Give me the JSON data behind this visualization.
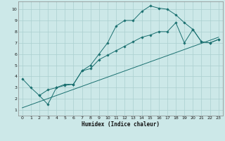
{
  "xlabel": "Humidex (Indice chaleur)",
  "ylabel": "",
  "background_color": "#cce8e8",
  "grid_color": "#aacfcf",
  "line_color": "#1a7070",
  "marker_color": "#1a7070",
  "xlim": [
    -0.5,
    23.5
  ],
  "ylim": [
    0.5,
    10.7
  ],
  "xticks": [
    0,
    1,
    2,
    3,
    4,
    5,
    6,
    7,
    8,
    9,
    10,
    11,
    12,
    13,
    14,
    15,
    16,
    17,
    18,
    19,
    20,
    21,
    22,
    23
  ],
  "yticks": [
    1,
    2,
    3,
    4,
    5,
    6,
    7,
    8,
    9,
    10
  ],
  "line1_x": [
    0,
    1,
    2,
    3,
    4,
    5,
    6,
    7,
    8,
    9,
    10,
    11,
    12,
    13,
    14,
    15,
    16,
    17,
    18,
    19,
    20,
    21,
    22,
    23
  ],
  "line1_y": [
    3.8,
    3.0,
    2.3,
    1.5,
    3.0,
    3.3,
    3.3,
    4.5,
    5.0,
    6.0,
    7.0,
    8.5,
    9.0,
    9.0,
    9.8,
    10.3,
    10.1,
    10.0,
    9.5,
    8.8,
    8.2,
    7.1,
    7.0,
    7.3
  ],
  "line2_x": [
    2,
    3,
    4,
    5,
    6,
    7,
    8,
    9,
    10,
    11,
    12,
    13,
    14,
    15,
    16,
    17,
    18,
    19,
    20,
    21,
    22,
    23
  ],
  "line2_y": [
    2.3,
    2.8,
    3.0,
    3.2,
    3.3,
    4.5,
    4.7,
    5.5,
    5.9,
    6.3,
    6.7,
    7.1,
    7.5,
    7.7,
    8.0,
    8.0,
    8.8,
    7.0,
    8.2,
    7.1,
    7.0,
    7.3
  ],
  "line3_x": [
    0,
    23
  ],
  "line3_y": [
    1.2,
    7.5
  ]
}
